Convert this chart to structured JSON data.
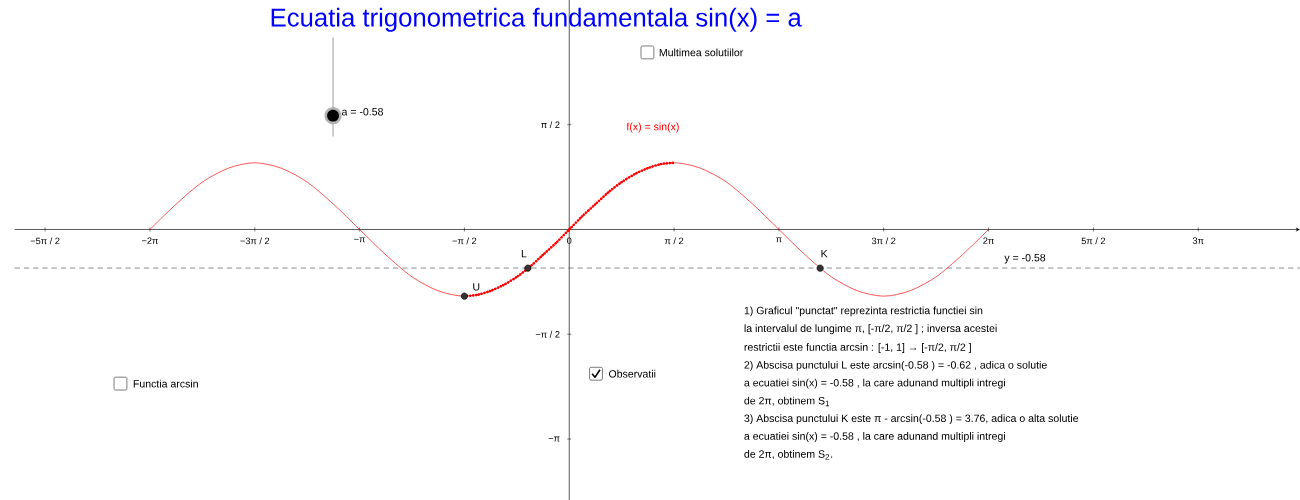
{
  "chart_data": {
    "type": "line",
    "title": "Ecuatia trigonometrica fundamentala sin(x) = a",
    "xlim": [
      -8.31,
      10.95
    ],
    "ylim": [
      -4.06,
      3.44
    ],
    "xticks": [
      {
        "value": -7.854,
        "label": "−5π / 2"
      },
      {
        "value": -6.283,
        "label": "−2π"
      },
      {
        "value": -4.712,
        "label": "−3π / 2"
      },
      {
        "value": -3.142,
        "label": "−π"
      },
      {
        "value": -1.571,
        "label": "−π / 2"
      },
      {
        "value": 0,
        "label": "0"
      },
      {
        "value": 1.571,
        "label": "π / 2"
      },
      {
        "value": 3.142,
        "label": "π"
      },
      {
        "value": 4.712,
        "label": "3π / 2"
      },
      {
        "value": 6.283,
        "label": "2π"
      },
      {
        "value": 7.854,
        "label": "5π / 2"
      },
      {
        "value": 9.425,
        "label": "3π"
      }
    ],
    "yticks": [
      {
        "value": -3.142,
        "label": "−π"
      },
      {
        "value": -1.571,
        "label": "−π / 2"
      },
      {
        "value": 1.571,
        "label": "π / 2"
      }
    ],
    "series": [
      {
        "name": "f(x) = sin(x)",
        "color": "#ff0000",
        "x": [
          -6.283,
          -5.89,
          -5.498,
          -5.105,
          -4.712,
          -4.32,
          -3.927,
          -3.534,
          -3.142,
          -2.749,
          -2.356,
          -1.963,
          -1.571,
          -1.178,
          -0.785,
          -0.393,
          0,
          0.393,
          0.785,
          1.178,
          1.571,
          1.963,
          2.356,
          2.749,
          3.142,
          3.534,
          3.927,
          4.32,
          4.712,
          5.105,
          5.498,
          5.89,
          6.283
        ],
        "values": [
          0,
          0.38,
          0.71,
          0.92,
          1,
          0.92,
          0.71,
          0.38,
          0,
          -0.38,
          -0.71,
          -0.92,
          -1,
          -0.92,
          -0.71,
          -0.38,
          0,
          0.38,
          0.71,
          0.92,
          1,
          0.92,
          0.71,
          0.38,
          0,
          -0.38,
          -0.71,
          -0.92,
          -1,
          -0.92,
          -0.71,
          -0.38,
          0
        ]
      },
      {
        "color": "#ff0000",
        "line_style": "dotted",
        "x": [
          -1.571,
          -1.374,
          -1.178,
          -0.982,
          -0.785,
          -0.589,
          -0.393,
          -0.196,
          0,
          0.196,
          0.393,
          0.589,
          0.785,
          0.982,
          1.178,
          1.374,
          1.571
        ],
        "values": [
          -1,
          -0.98,
          -0.92,
          -0.83,
          -0.71,
          -0.56,
          -0.38,
          -0.2,
          0,
          0.2,
          0.38,
          0.56,
          0.71,
          0.83,
          0.92,
          0.98,
          1
        ]
      },
      {
        "type": "scatter",
        "color": "#333333",
        "marker": "circle",
        "x": [
          -1.571,
          -0.62,
          3.76
        ],
        "values": [
          -1,
          -0.58,
          -0.58
        ]
      }
    ],
    "ref_lines": [
      {
        "axis": "y",
        "value": -0.58,
        "label": "y = -0.58",
        "color": "#333333",
        "line_style": "dashed"
      }
    ],
    "annotations": [
      "a = -0.58",
      "Multimea solutiilor",
      "Functia arcsin",
      "Observatii",
      "1) Graficul \"punctat\" reprezinta restrictia functiei sin",
      "la intervalul de lungime π, [-π/2, π/2 ] ; inversa acestei",
      "restrictii este functia arcsin : [-1, 1] → [-π/2, π/2 ]",
      "2) Abscisa punctului L este arcsin(-0.58 ) = -0.62  , adica o solutie",
      "a ecuatiei sin(x) = -0.58 , la care adunand multipli intregi",
      "de 2π, obtinem S$_{1}$",
      "3) Abscisa punctului K este π - arcsin(-0.58 ) = 3.76, adica o alta solutie",
      "a ecuatiei sin(x) = -0.58 , la care adunand multipli intregi",
      "de 2π, obtinem S$_{2}$.",
      {
        "text": "U",
        "x": -1.571,
        "y": -1
      },
      {
        "text": "L",
        "x": -0.62,
        "y": -0.58
      },
      {
        "text": "K",
        "x": 3.76,
        "y": -0.58
      }
    ]
  }
}
